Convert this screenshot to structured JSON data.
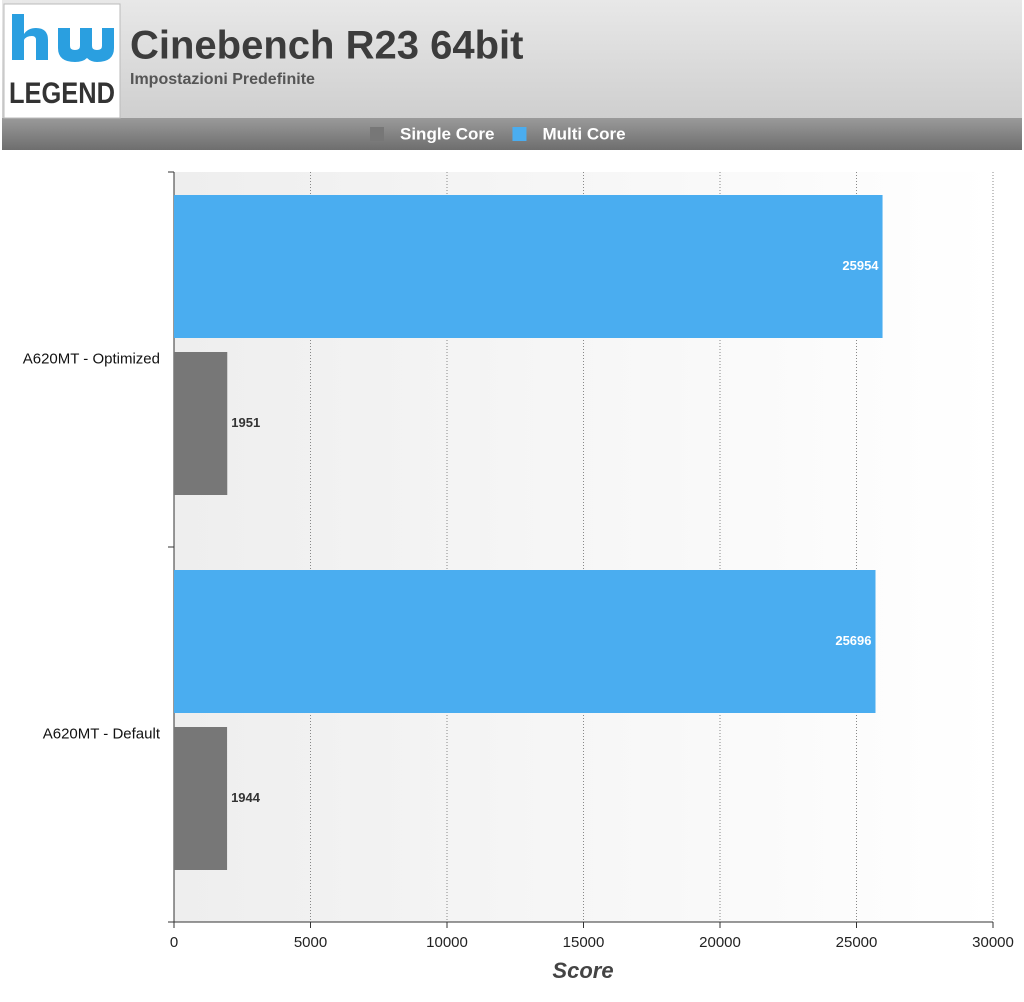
{
  "logo_text": "LEGEND",
  "chart_data": {
    "type": "hbar",
    "title": "Cinebench R23 64bit",
    "subtitle": "Impostazioni Predefinite",
    "x_label": "Score",
    "categories": [
      "A620MT - Optimized",
      "A620MT - Default"
    ],
    "series": [
      {
        "name": "Single Core",
        "color": "#777777",
        "values": [
          1951,
          1944
        ]
      },
      {
        "name": "Multi Core",
        "color": "#4aadf0",
        "values": [
          25954,
          25696
        ]
      }
    ],
    "xlim": [
      0,
      30000
    ],
    "xticks": [
      0,
      5000,
      10000,
      15000,
      20000,
      25000,
      30000
    ],
    "grid": true,
    "legend": "top"
  }
}
